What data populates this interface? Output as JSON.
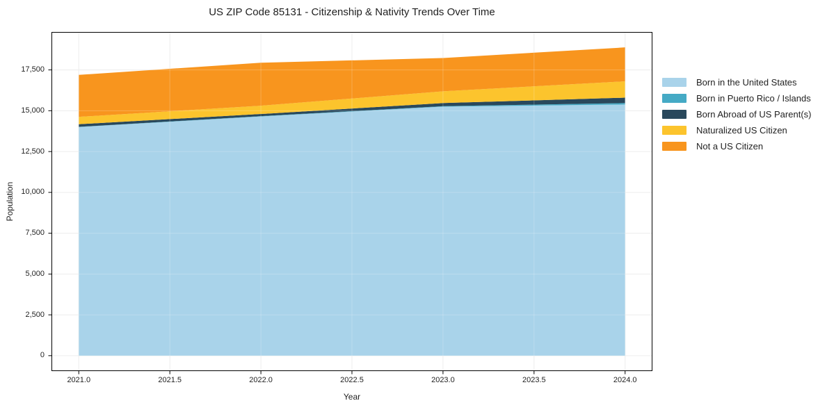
{
  "chart_data": {
    "type": "area",
    "stacked": true,
    "title": "US ZIP Code 85131 - Citizenship & Nativity Trends Over Time",
    "xlabel": "Year",
    "ylabel": "Population",
    "x": [
      2021,
      2022,
      2023,
      2024
    ],
    "series": [
      {
        "name": "Born in the United States",
        "color": "#a9d3ea",
        "values": [
          14000,
          14650,
          15250,
          15380
        ]
      },
      {
        "name": "Born in Puerto Rico / Islands",
        "color": "#45aac5",
        "values": [
          15,
          20,
          30,
          90
        ]
      },
      {
        "name": "Born Abroad of US Parent(s)",
        "color": "#29485c",
        "values": [
          160,
          130,
          190,
          330
        ]
      },
      {
        "name": "Naturalized US Citizen",
        "color": "#fcc42d",
        "values": [
          450,
          510,
          720,
          1000
        ]
      },
      {
        "name": "Not a US Citizen",
        "color": "#f8951e",
        "values": [
          2570,
          2630,
          2040,
          2080
        ]
      }
    ],
    "xlim": [
      2020.85,
      2024.15
    ],
    "ylim": [
      -944,
      19824
    ],
    "x_ticks": [
      {
        "value": 2021.0,
        "label": "2021.0"
      },
      {
        "value": 2021.5,
        "label": "2021.5"
      },
      {
        "value": 2022.0,
        "label": "2022.0"
      },
      {
        "value": 2022.5,
        "label": "2022.5"
      },
      {
        "value": 2023.0,
        "label": "2023.0"
      },
      {
        "value": 2023.5,
        "label": "2023.5"
      },
      {
        "value": 2024.0,
        "label": "2024.0"
      }
    ],
    "y_ticks": [
      {
        "value": 0,
        "label": "0"
      },
      {
        "value": 2500,
        "label": "2,500"
      },
      {
        "value": 5000,
        "label": "5,000"
      },
      {
        "value": 7500,
        "label": "7,500"
      },
      {
        "value": 10000,
        "label": "10,000"
      },
      {
        "value": 12500,
        "label": "12,500"
      },
      {
        "value": 15000,
        "label": "15,000"
      },
      {
        "value": 17500,
        "label": "17,500"
      }
    ],
    "grid": true,
    "grid_color": "#e9e9e9",
    "legend_position": "right-outside",
    "background": "#ffffff",
    "text_color": "#1f1f1f"
  }
}
